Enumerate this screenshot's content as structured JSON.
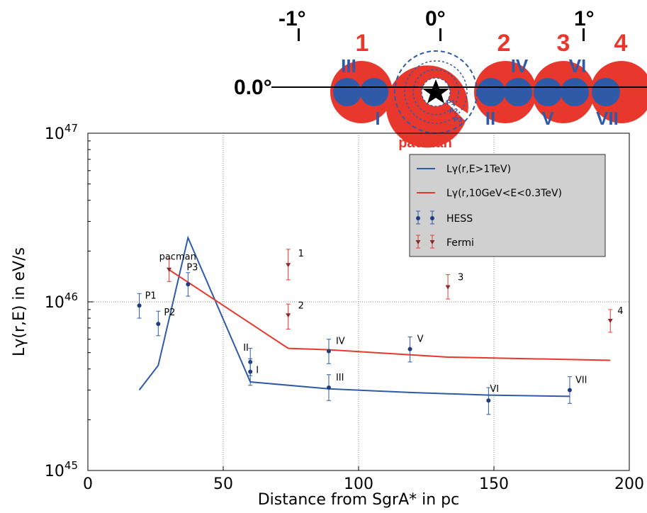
{
  "chart_data": {
    "type": "line",
    "title": "",
    "xlabel": "Distance from SgrA* in pc",
    "ylabel": "Lγ(r,E) in eV/s",
    "xlim": [
      0,
      200
    ],
    "ylim": [
      1e+45,
      1e+47
    ],
    "yscale": "log",
    "grid": true,
    "legend_position": "top-right",
    "x_ticks": [
      "0",
      "50",
      "100",
      "150",
      "200"
    ],
    "y_ticks": [
      {
        "base": "10",
        "exp": "45"
      },
      {
        "base": "10",
        "exp": "46"
      },
      {
        "base": "10",
        "exp": "47"
      }
    ],
    "legend": [
      {
        "kind": "line",
        "color": "#2f5aa8",
        "label": "Lγ(r,E>1TeV)"
      },
      {
        "kind": "line",
        "color": "#e8382d",
        "label": "Lγ(r,10GeV<E<0.3TeV)"
      },
      {
        "kind": "point",
        "color": "#2f5aa8",
        "label": "HESS"
      },
      {
        "kind": "point",
        "color": "#e8382d",
        "label": "Fermi"
      }
    ],
    "lines": [
      {
        "color": "#2f5aa8",
        "x": [
          19,
          26,
          37,
          60,
          89,
          119,
          148,
          178
        ],
        "y": [
          3e+45,
          4.2e+45,
          2.4e+46,
          3.35e+45,
          3.05e+45,
          2.9e+45,
          2.8e+45,
          2.75e+45
        ]
      },
      {
        "color": "#e8382d",
        "x": [
          30,
          74,
          89,
          133,
          193
        ],
        "y": [
          1.55e+46,
          5.3e+45,
          5.2e+45,
          4.7e+45,
          4.5e+45
        ]
      }
    ],
    "hess_points": [
      {
        "label": "P1",
        "x": 19,
        "y": 9.5e+45,
        "lo": 8e+45,
        "hi": 1.12e+46
      },
      {
        "label": "P2",
        "x": 26,
        "y": 7.4e+45,
        "lo": 6.3e+45,
        "hi": 8.8e+45
      },
      {
        "label": "P3",
        "x": 37,
        "y": 1.27e+46,
        "lo": 1.08e+46,
        "hi": 1.49e+46
      },
      {
        "label": "II",
        "x": 60,
        "y": 4.4e+45,
        "lo": 3.65e+45,
        "hi": 5.3e+45
      },
      {
        "label": "I",
        "x": 60,
        "y": 3.85e+45,
        "lo": 3.2e+45,
        "hi": 4.6e+45
      },
      {
        "label": "IV",
        "x": 89,
        "y": 5.1e+45,
        "lo": 4.3e+45,
        "hi": 6e+45
      },
      {
        "label": "III",
        "x": 89,
        "y": 3.1e+45,
        "lo": 2.6e+45,
        "hi": 3.7e+45
      },
      {
        "label": "V",
        "x": 119,
        "y": 5.25e+45,
        "lo": 4.4e+45,
        "hi": 6.2e+45
      },
      {
        "label": "VI",
        "x": 148,
        "y": 2.6e+45,
        "lo": 2.15e+45,
        "hi": 3.1e+45
      },
      {
        "label": "VII",
        "x": 178,
        "y": 3e+45,
        "lo": 2.5e+45,
        "hi": 3.6e+45
      }
    ],
    "fermi_points": [
      {
        "label": "pacman",
        "x": 30,
        "y": 1.55e+46,
        "lo": 1.32e+46,
        "hi": 1.8e+46
      },
      {
        "label": "1",
        "x": 74,
        "y": 1.65e+46,
        "lo": 1.35e+46,
        "hi": 2.05e+46
      },
      {
        "label": "2",
        "x": 74,
        "y": 8.3e+45,
        "lo": 6.9e+45,
        "hi": 9.7e+45
      },
      {
        "label": "3",
        "x": 133,
        "y": 1.22e+46,
        "lo": 1.04e+46,
        "hi": 1.45e+46
      },
      {
        "label": "4",
        "x": 193,
        "y": 7.7e+45,
        "lo": 6.6e+45,
        "hi": 9e+45
      }
    ]
  },
  "region_map": {
    "longitudes": [
      "-1°",
      "0°",
      "1°"
    ],
    "latitude": "0.0°",
    "fermi_regions": [
      "1",
      "2",
      "3",
      "4"
    ],
    "hess_regions": [
      "I",
      "II",
      "III",
      "IV",
      "V",
      "VI",
      "VII"
    ],
    "inner_labels": [
      "P1",
      "P2",
      "P3"
    ],
    "central_label": "pacman",
    "colors": {
      "fermi": "#e8382d",
      "hess": "#2f5aa8"
    }
  }
}
